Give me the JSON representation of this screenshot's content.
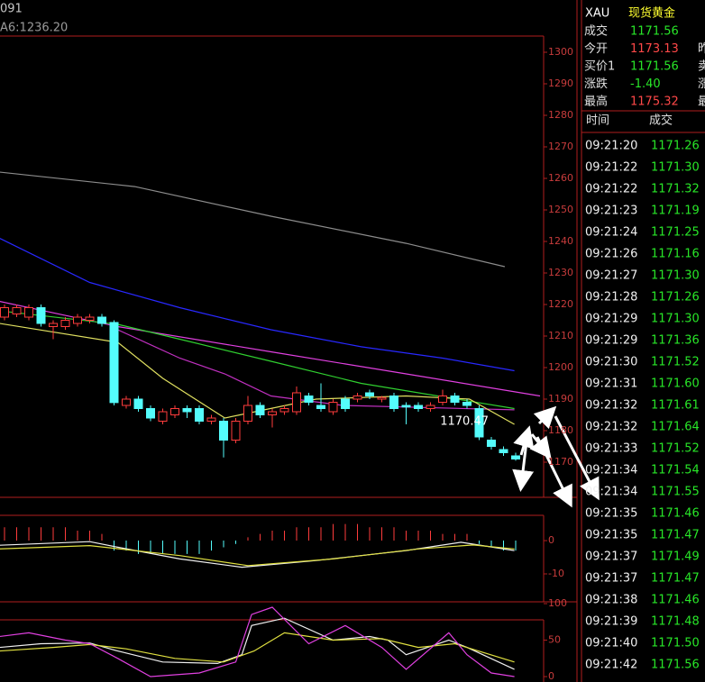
{
  "header": {
    "code": "091",
    "ma_label": "A6:1236.20"
  },
  "chart": {
    "ylim": [
      1300,
      1170
    ],
    "yticks": [
      1300,
      1290,
      1280,
      1270,
      1260,
      1250,
      1240,
      1230,
      1220,
      1210,
      1200,
      1190,
      1180,
      1170
    ],
    "up_color": "#ff3c3c",
    "down_color": "#54fcfc",
    "candles": [
      [
        1216,
        1219,
        1220,
        1215
      ],
      [
        1217,
        1219,
        1220,
        1216
      ],
      [
        1216,
        1219,
        1220,
        1215
      ],
      [
        1219,
        1214,
        1220,
        1213
      ],
      [
        1213,
        1214,
        1215,
        1209
      ],
      [
        1213,
        1215,
        1216,
        1212
      ],
      [
        1214,
        1216,
        1217,
        1213
      ],
      [
        1215,
        1216,
        1217,
        1214
      ],
      [
        1216,
        1214,
        1217,
        1213
      ],
      [
        1214.3,
        1188.9,
        1215,
        1188
      ],
      [
        1188,
        1190,
        1191,
        1187
      ],
      [
        1190,
        1187,
        1191,
        1186
      ],
      [
        1187,
        1184,
        1188,
        1183
      ],
      [
        1183,
        1186,
        1187,
        1182
      ],
      [
        1185,
        1187,
        1188,
        1184
      ],
      [
        1187,
        1186,
        1188,
        1184
      ],
      [
        1187,
        1183,
        1188,
        1182
      ],
      [
        1183,
        1184,
        1185,
        1182
      ],
      [
        1183,
        1177,
        1184,
        1171.5
      ],
      [
        1177,
        1183,
        1184,
        1176
      ],
      [
        1183,
        1188,
        1191,
        1182
      ],
      [
        1188,
        1185,
        1189,
        1184
      ],
      [
        1185,
        1186,
        1187,
        1181
      ],
      [
        1186,
        1187,
        1188,
        1185
      ],
      [
        1186,
        1192,
        1194,
        1185
      ],
      [
        1191,
        1189,
        1192,
        1188
      ],
      [
        1188,
        1187,
        1195,
        1186
      ],
      [
        1186,
        1189,
        1190,
        1185
      ],
      [
        1190,
        1187,
        1191,
        1186
      ],
      [
        1190,
        1191,
        1192,
        1189
      ],
      [
        1192,
        1191,
        1193,
        1190
      ],
      [
        1190,
        1190.5,
        1191,
        1189
      ],
      [
        1191,
        1187,
        1192,
        1186
      ],
      [
        1188,
        1187.5,
        1189,
        1182
      ],
      [
        1188,
        1187,
        1189,
        1186
      ],
      [
        1187,
        1188,
        1189,
        1186
      ],
      [
        1189,
        1191,
        1193,
        1188
      ],
      [
        1191,
        1189,
        1192,
        1188
      ],
      [
        1189,
        1188,
        1190,
        1187
      ],
      [
        1187,
        1178,
        1188,
        1177
      ],
      [
        1177,
        1175,
        1178,
        1174
      ],
      [
        1174,
        1173,
        1175,
        1172
      ],
      [
        1172,
        1171,
        1173,
        1170.47
      ]
    ],
    "low_label": "1170.47",
    "ma": [
      {
        "color": "#8c8c8c",
        "x": [
          -0.4,
          10.7,
          21.9,
          33,
          41.1
        ],
        "values": [
          1262,
          1257.4,
          1248,
          1239.4,
          1232
        ]
      },
      {
        "color": "#2828ff",
        "x": [
          -0.4,
          7,
          14.4,
          21.9,
          29.3,
          36,
          41.9
        ],
        "values": [
          1241,
          1227,
          1219,
          1212,
          1206.6,
          1203,
          1199
        ]
      },
      {
        "color": "#e040e0",
        "x": [
          -0.4,
          9.3,
          21.9,
          33,
          44
        ],
        "values": [
          1221,
          1213,
          1205,
          1198,
          1191
        ]
      },
      {
        "color": "#c030c0",
        "x": [
          9.3,
          14.4,
          18.1,
          21.9,
          27.8,
          41.9
        ],
        "values": [
          1212,
          1203,
          1198,
          1191,
          1188,
          1186.6
        ]
      },
      {
        "color": "#30d030",
        "x": [
          -0.4,
          9.3,
          14.4,
          21.9,
          29.3,
          41.9
        ],
        "values": [
          1218,
          1213.7,
          1209,
          1202,
          1195,
          1187
        ]
      },
      {
        "color": "#e0e060",
        "x": [
          -0.4,
          9.3,
          13,
          18.1,
          25.6,
          33,
          38.2,
          41.9
        ],
        "values": [
          1214,
          1208,
          1196.6,
          1184,
          1190,
          1191,
          1190,
          1182
        ]
      }
    ]
  },
  "macd": {
    "ylim": [
      7.6,
      -18.4
    ],
    "yticks": [
      0,
      -10
    ],
    "bars": [
      4,
      4,
      4,
      4,
      4,
      4,
      3,
      3,
      2,
      -3,
      -3,
      -4,
      -4,
      -4,
      -4,
      -4,
      -4,
      -3,
      -2,
      -1,
      1,
      2,
      3,
      3,
      4,
      4,
      4,
      5,
      5,
      5,
      4,
      4,
      4,
      3,
      3,
      3,
      2,
      2,
      2,
      -1,
      -2,
      -3,
      -3
    ],
    "lines": [
      {
        "color": "#f0f0f0",
        "x": [
          -0.4,
          7,
          9.3,
          14.4,
          19.5,
          25.6,
          33,
          37.5,
          41.9
        ],
        "values": [
          -1.4,
          -0.3,
          -2,
          -5.5,
          -8,
          -6,
          -3,
          -0.5,
          -3
        ]
      },
      {
        "color": "#e0e040",
        "x": [
          -0.4,
          7,
          14.4,
          20,
          27,
          34,
          38.5,
          41.9
        ],
        "values": [
          -2.5,
          -1.5,
          -4.5,
          -7.5,
          -5.5,
          -2.5,
          -1.3,
          -2.5
        ]
      }
    ]
  },
  "kdj": {
    "ylim": [
      100,
      0
    ],
    "yticks": [
      100,
      50,
      0
    ],
    "lines": [
      {
        "color": "#f0f0f0",
        "x": [
          -0.4,
          3,
          7,
          9.3,
          13,
          17.5,
          19.5,
          20.3,
          23,
          27,
          30,
          31.5,
          33,
          36.5,
          38,
          41.9
        ],
        "values": [
          40,
          45,
          46,
          35,
          20,
          18,
          30,
          70,
          80,
          50,
          55,
          50,
          30,
          50,
          40,
          10
        ]
      },
      {
        "color": "#e0e040",
        "x": [
          -0.4,
          4,
          7,
          10,
          14,
          18,
          20.5,
          23,
          27,
          31,
          34,
          37,
          41.9
        ],
        "values": [
          35,
          40,
          44,
          38,
          25,
          20,
          35,
          60,
          50,
          52,
          40,
          45,
          20
        ]
      },
      {
        "color": "#e040e0",
        "x": [
          -0.4,
          2,
          5,
          7,
          9.3,
          12,
          16,
          19,
          20.3,
          22,
          25,
          28,
          31,
          33,
          36.5,
          38,
          40,
          41.9
        ],
        "values": [
          55,
          60,
          50,
          45,
          25,
          0,
          5,
          20,
          85,
          95,
          45,
          70,
          40,
          10,
          60,
          30,
          5,
          0
        ]
      }
    ]
  },
  "quote": {
    "symbol": "XAU",
    "name": "现货黄金",
    "rows": [
      {
        "label": "成交",
        "value": "1171.56",
        "color": "#28e628",
        "extra": ""
      },
      {
        "label": "今开",
        "value": "1173.13",
        "color": "#ff4848",
        "extra": "昨"
      },
      {
        "label": "买价1",
        "value": "1171.56",
        "color": "#28e628",
        "extra": "卖"
      },
      {
        "label": "涨跌",
        "value": "-1.40",
        "color": "#28e628",
        "extra": "涨"
      },
      {
        "label": "最高",
        "value": "1175.32",
        "color": "#ff4848",
        "extra": "最"
      }
    ]
  },
  "trades": {
    "header": [
      "时间",
      "成交"
    ],
    "price_color": "#28e628",
    "rows": [
      [
        "09:21:20",
        "1171.26"
      ],
      [
        "09:21:22",
        "1171.30"
      ],
      [
        "09:21:22",
        "1171.32"
      ],
      [
        "09:21:23",
        "1171.19"
      ],
      [
        "09:21:24",
        "1171.25"
      ],
      [
        "09:21:26",
        "1171.16"
      ],
      [
        "09:21:27",
        "1171.30"
      ],
      [
        "09:21:28",
        "1171.26"
      ],
      [
        "09:21:29",
        "1171.30"
      ],
      [
        "09:21:29",
        "1171.36"
      ],
      [
        "09:21:30",
        "1171.52"
      ],
      [
        "09:21:31",
        "1171.60"
      ],
      [
        "09:21:32",
        "1171.61"
      ],
      [
        "09:21:32",
        "1171.64"
      ],
      [
        "09:21:33",
        "1171.52"
      ],
      [
        "09:21:34",
        "1171.54"
      ],
      [
        "09:21:34",
        "1171.55"
      ],
      [
        "09:21:35",
        "1171.46"
      ],
      [
        "09:21:35",
        "1171.47"
      ],
      [
        "09:21:37",
        "1171.49"
      ],
      [
        "09:21:37",
        "1171.47"
      ],
      [
        "09:21:38",
        "1171.46"
      ],
      [
        "09:21:39",
        "1171.48"
      ],
      [
        "09:21:40",
        "1171.50"
      ],
      [
        "09:21:42",
        "1171.56"
      ]
    ]
  }
}
